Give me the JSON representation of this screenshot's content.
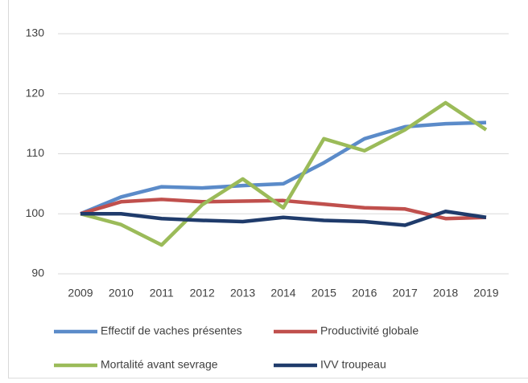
{
  "chart_data": {
    "type": "line",
    "categories": [
      "2009",
      "2010",
      "2011",
      "2012",
      "2013",
      "2014",
      "2015",
      "2016",
      "2017",
      "2018",
      "2019"
    ],
    "series": [
      {
        "name": "Effectif de vaches présentes",
        "color": "#5b8bc9",
        "values": [
          100,
          102.8,
          104.5,
          104.3,
          104.7,
          105,
          108.5,
          112.5,
          114.5,
          115,
          115.2
        ]
      },
      {
        "name": "Productivité globale",
        "color": "#c0504d",
        "values": [
          100,
          102,
          102.4,
          102,
          102.1,
          102.2,
          101.6,
          101,
          100.8,
          99.2,
          99.4
        ]
      },
      {
        "name": "Mortalité avant sevrage",
        "color": "#9bbb59",
        "values": [
          100,
          98.2,
          94.8,
          101.5,
          105.8,
          101,
          112.5,
          110.5,
          114,
          118.5,
          114
        ]
      },
      {
        "name": "IVV troupeau",
        "color": "#1f3b6b",
        "values": [
          100,
          100,
          99.2,
          98.9,
          98.7,
          99.4,
          98.9,
          98.7,
          98.1,
          100.4,
          99.4
        ]
      }
    ],
    "ylim": [
      90,
      130
    ],
    "yticks": [
      90,
      100,
      110,
      120,
      130
    ],
    "grid": true
  }
}
